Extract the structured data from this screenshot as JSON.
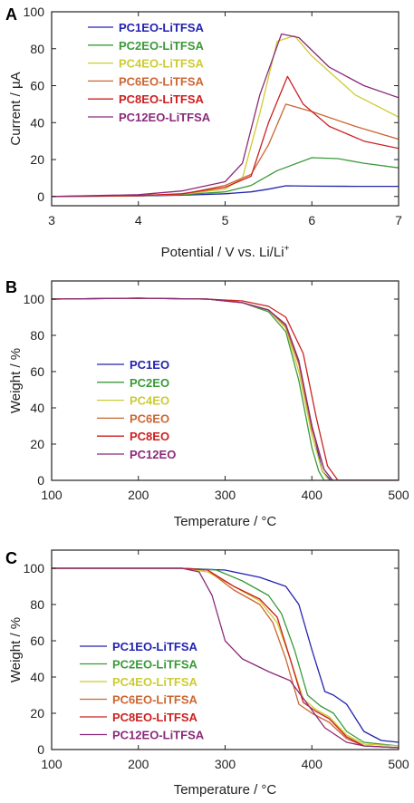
{
  "chart_data": [
    {
      "panel": "A",
      "type": "line",
      "xlabel": "Potential / V vs. Li/Li",
      "xlabel_sup": "+",
      "ylabel": "Current / µA",
      "xlim": [
        3,
        7
      ],
      "ylim": [
        -5,
        100
      ],
      "xticks": [
        3,
        4,
        5,
        6,
        7
      ],
      "yticks": [
        0,
        20,
        40,
        60,
        80,
        100
      ],
      "legend_position": "top-left",
      "series": [
        {
          "name": "PC1EO-LiTFSA",
          "color": "#2323b0",
          "x": [
            3,
            4,
            4.5,
            5,
            5.3,
            5.5,
            5.7,
            6,
            6.5,
            7
          ],
          "y": [
            0,
            0.3,
            0.7,
            1.5,
            2.5,
            4,
            5.8,
            5.6,
            5.5,
            5.5
          ]
        },
        {
          "name": "PC2EO-LiTFSA",
          "color": "#3a9a3a",
          "x": [
            3,
            4,
            4.5,
            5,
            5.3,
            5.6,
            6,
            6.3,
            6.6,
            7
          ],
          "y": [
            0,
            0.4,
            1,
            2.5,
            6,
            14,
            21,
            20.5,
            18,
            15.5
          ]
        },
        {
          "name": "PC4EO-LiTFSA",
          "color": "#cccc33",
          "x": [
            3,
            4,
            4.5,
            5,
            5.2,
            5.4,
            5.6,
            5.8,
            6,
            6.5,
            7
          ],
          "y": [
            0,
            0.4,
            1.2,
            4,
            10,
            45,
            84,
            87,
            76,
            55,
            43
          ]
        },
        {
          "name": "PC6EO-LiTFSA",
          "color": "#cc6633",
          "x": [
            3,
            4,
            4.5,
            5,
            5.3,
            5.5,
            5.7,
            6,
            6.5,
            7
          ],
          "y": [
            0,
            0.5,
            1.2,
            6,
            12,
            28,
            50,
            46,
            38,
            31
          ]
        },
        {
          "name": "PC8EO-LiTFSA",
          "color": "#cc2020",
          "x": [
            3,
            4,
            4.5,
            5,
            5.3,
            5.5,
            5.72,
            5.9,
            6.2,
            6.6,
            7
          ],
          "y": [
            0,
            0.5,
            1.5,
            5,
            11,
            40,
            65,
            50,
            38,
            30,
            26
          ]
        },
        {
          "name": "PC12EO-LiTFSA",
          "color": "#8a2a7a",
          "x": [
            3,
            4,
            4.5,
            5,
            5.2,
            5.4,
            5.65,
            5.85,
            6.2,
            6.6,
            7
          ],
          "y": [
            0,
            1,
            3,
            8,
            18,
            55,
            88,
            86,
            70,
            60,
            53.5
          ]
        }
      ]
    },
    {
      "panel": "B",
      "type": "line",
      "xlabel": "Temperature / °C",
      "ylabel": "Weight / %",
      "xlim": [
        100,
        500
      ],
      "ylim": [
        0,
        110
      ],
      "xticks": [
        100,
        200,
        300,
        400,
        500
      ],
      "yticks": [
        0,
        20,
        40,
        60,
        80,
        100
      ],
      "legend_position": "bottom-left",
      "series": [
        {
          "name": "PC1EO",
          "color": "#2323b0",
          "x": [
            100,
            200,
            280,
            320,
            350,
            370,
            385,
            400,
            412,
            422,
            500
          ],
          "y": [
            100,
            100.5,
            100,
            98,
            94,
            85,
            65,
            30,
            5,
            0,
            0
          ]
        },
        {
          "name": "PC2EO",
          "color": "#3a9a3a",
          "x": [
            100,
            200,
            280,
            320,
            350,
            370,
            385,
            400,
            408,
            414,
            500
          ],
          "y": [
            100,
            100.5,
            100,
            98,
            93,
            82,
            55,
            18,
            5,
            0,
            0
          ]
        },
        {
          "name": "PC4EO",
          "color": "#cccc33",
          "x": [
            100,
            200,
            280,
            320,
            350,
            370,
            385,
            400,
            412,
            420,
            500
          ],
          "y": [
            100,
            100.5,
            100,
            98,
            94,
            84,
            60,
            25,
            5,
            0,
            0
          ]
        },
        {
          "name": "PC6EO",
          "color": "#cc6633",
          "x": [
            100,
            200,
            280,
            320,
            350,
            370,
            385,
            400,
            414,
            424,
            500
          ],
          "y": [
            100,
            100.5,
            100,
            98,
            94,
            85,
            64,
            28,
            6,
            0,
            0
          ]
        },
        {
          "name": "PC8EO",
          "color": "#cc2020",
          "x": [
            100,
            200,
            280,
            320,
            350,
            370,
            390,
            405,
            418,
            430,
            500
          ],
          "y": [
            100,
            100.5,
            100,
            99,
            96,
            90,
            70,
            35,
            8,
            0,
            0
          ]
        },
        {
          "name": "PC12EO",
          "color": "#8a2a7a",
          "x": [
            100,
            200,
            280,
            320,
            350,
            370,
            385,
            400,
            414,
            424,
            500
          ],
          "y": [
            100,
            100.5,
            100,
            98,
            94,
            86,
            66,
            30,
            6,
            0,
            0
          ]
        }
      ]
    },
    {
      "panel": "C",
      "type": "line",
      "xlabel": "Temperature / °C",
      "ylabel": "Weight / %",
      "xlim": [
        100,
        500
      ],
      "ylim": [
        0,
        110
      ],
      "xticks": [
        100,
        200,
        300,
        400,
        500
      ],
      "yticks": [
        0,
        20,
        40,
        60,
        80,
        100
      ],
      "legend_position": "bottom-left",
      "series": [
        {
          "name": "PC1EO-LiTFSA",
          "color": "#2323b0",
          "x": [
            100,
            250,
            300,
            340,
            370,
            385,
            400,
            415,
            425,
            440,
            460,
            480,
            500
          ],
          "y": [
            100,
            100,
            99,
            95,
            90,
            80,
            55,
            32,
            30,
            25,
            10,
            5,
            4
          ]
        },
        {
          "name": "PC2EO-LiTFSA",
          "color": "#3a9a3a",
          "x": [
            100,
            250,
            290,
            320,
            350,
            365,
            380,
            395,
            410,
            425,
            440,
            460,
            500
          ],
          "y": [
            100,
            100,
            99,
            93,
            85,
            75,
            55,
            30,
            24,
            20,
            10,
            4,
            2
          ]
        },
        {
          "name": "PC4EO-LiTFSA",
          "color": "#cccc33",
          "x": [
            100,
            250,
            280,
            310,
            340,
            360,
            375,
            390,
            405,
            420,
            440,
            460,
            500
          ],
          "y": [
            100,
            100,
            98,
            90,
            82,
            70,
            50,
            28,
            22,
            18,
            8,
            3,
            2
          ]
        },
        {
          "name": "PC6EO-LiTFSA",
          "color": "#cc6633",
          "x": [
            100,
            250,
            280,
            310,
            340,
            355,
            370,
            385,
            400,
            420,
            440,
            460,
            500
          ],
          "y": [
            100,
            100,
            99,
            88,
            80,
            70,
            50,
            25,
            20,
            15,
            6,
            2,
            1
          ]
        },
        {
          "name": "PC8EO-LiTFSA",
          "color": "#cc2020",
          "x": [
            100,
            250,
            280,
            310,
            340,
            360,
            375,
            390,
            405,
            420,
            440,
            460,
            500
          ],
          "y": [
            100,
            100,
            99,
            90,
            83,
            73,
            50,
            26,
            21,
            17,
            7,
            2,
            1
          ]
        },
        {
          "name": "PC12EO-LiTFSA",
          "color": "#8a2a7a",
          "x": [
            100,
            250,
            270,
            285,
            300,
            320,
            350,
            375,
            395,
            415,
            440,
            460,
            500
          ],
          "y": [
            100,
            100,
            98,
            85,
            60,
            50,
            43,
            38,
            25,
            12,
            4,
            2,
            1
          ]
        }
      ]
    }
  ]
}
